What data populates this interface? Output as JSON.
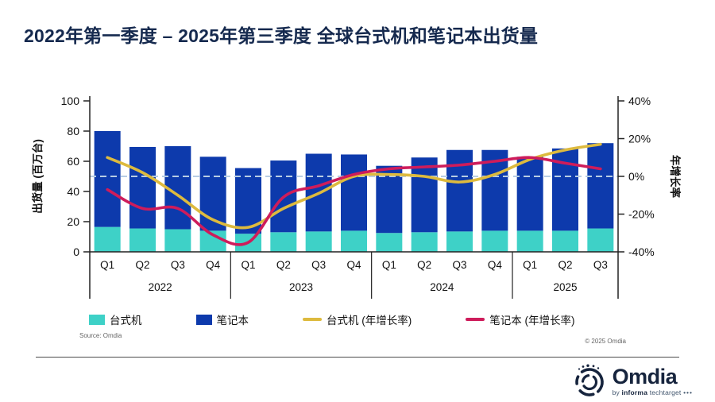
{
  "title": "2022年第一季度 – 2025年第三季度 全球台式机和笔记本出货量",
  "chart_data": {
    "type": "bar",
    "subtype": "stacked-bars-with-growth-lines",
    "categories": [
      "2022 Q1",
      "2022 Q2",
      "2022 Q3",
      "2022 Q4",
      "2023 Q1",
      "2023 Q2",
      "2023 Q3",
      "2023 Q4",
      "2024 Q1",
      "2024 Q2",
      "2024 Q3",
      "2024 Q4",
      "2025 Q1",
      "2025 Q2",
      "2025 Q3"
    ],
    "groups": [
      {
        "year": "2022",
        "quarters": [
          "Q1",
          "Q2",
          "Q3",
          "Q4"
        ]
      },
      {
        "year": "2023",
        "quarters": [
          "Q1",
          "Q2",
          "Q3",
          "Q4"
        ]
      },
      {
        "year": "2024",
        "quarters": [
          "Q1",
          "Q2",
          "Q3",
          "Q4"
        ]
      },
      {
        "year": "2025",
        "quarters": [
          "Q1",
          "Q2",
          "Q3"
        ]
      }
    ],
    "bar_series": [
      {
        "name": "台式机",
        "color": "#3ed1c7",
        "values": [
          16.5,
          15.5,
          15,
          14,
          12,
          13,
          13.5,
          14,
          12.5,
          13,
          13.5,
          14,
          14,
          14,
          15.5
        ]
      },
      {
        "name": "笔记本",
        "color": "#0d3aac",
        "values": [
          63.5,
          54,
          55,
          49,
          43.5,
          47.5,
          51.5,
          50.5,
          44.5,
          49.5,
          54,
          53.5,
          49,
          54.5,
          56.5
        ]
      }
    ],
    "line_series": [
      {
        "name": "台式机 (年增长率)",
        "color": "#ddba3e",
        "values_pct": [
          10,
          2,
          -10,
          -23,
          -27,
          -17,
          -9,
          0,
          1,
          0,
          -3,
          1,
          9,
          14,
          17
        ]
      },
      {
        "name": "笔记本 (年增长率)",
        "color": "#ce1c5b",
        "values_pct": [
          -7,
          -17,
          -17,
          -31,
          -35,
          -11,
          -5,
          1,
          4,
          5,
          6,
          8,
          10,
          7,
          4
        ]
      }
    ],
    "y_left": {
      "label": "出货量 (百万台)",
      "min": 0,
      "max": 100,
      "ticks": [
        0,
        20,
        40,
        60,
        80,
        100
      ]
    },
    "y_right": {
      "label": "年增长率",
      "min": -40,
      "max": 40,
      "ticks_pct": [
        40,
        20,
        0,
        -20,
        -40
      ],
      "tick_suffix": "%"
    },
    "reference_line": {
      "right_value_pct": 0,
      "style": "dashed",
      "color": "#b7cde4"
    },
    "grid": "off",
    "legend_position": "bottom"
  },
  "legend": [
    {
      "label": "台式机",
      "type": "rect"
    },
    {
      "label": "笔记本",
      "type": "rect"
    },
    {
      "label": "台式机 (年增长率)",
      "type": "line"
    },
    {
      "label": "笔记本 (年增长率)",
      "type": "line"
    }
  ],
  "source_note": "Source: Omdia",
  "copyright": "© 2025 Omdia",
  "logo": {
    "brand": "Omdia",
    "tagline_by": "by",
    "tagline_informa": "informa",
    "tagline_techtarget": "techtarget",
    "tagline_dots": "•••"
  }
}
